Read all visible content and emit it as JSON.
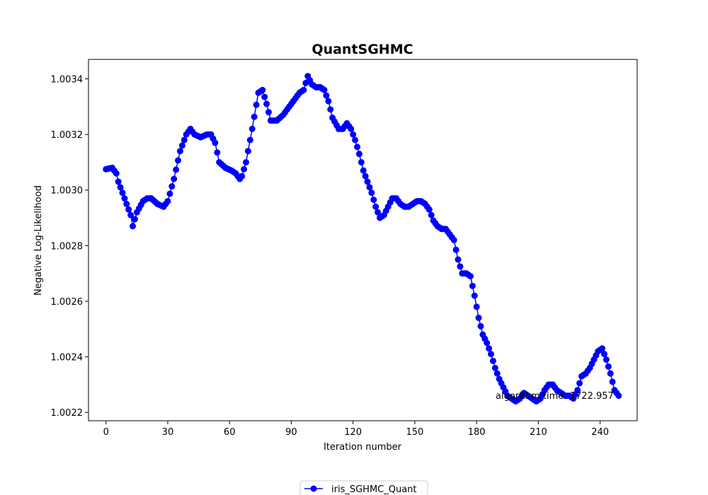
{
  "chart_data": {
    "type": "line",
    "title": "QuantSGHMC",
    "xlabel": "Iteration number",
    "ylabel": "Negative Log-Likelihood",
    "xlim": [
      -8.5,
      258
    ],
    "ylim": [
      1.00217,
      1.00347
    ],
    "xticks": [
      0,
      30,
      60,
      90,
      120,
      150,
      180,
      210,
      240
    ],
    "yticks": [
      1.0022,
      1.0024,
      1.0026,
      1.0028,
      1.003,
      1.0032,
      1.0034
    ],
    "ytick_labels": [
      "1.0022",
      "1.0024",
      "1.0026",
      "1.0028",
      "1.0030",
      "1.0032",
      "1.0034"
    ],
    "grid": false,
    "legend_position": "bottom-center",
    "color": "#0000ff",
    "annotation": "algorithm time: 1722.957",
    "series": [
      {
        "name": "iris_SGHMC_Quant",
        "marker": "circle",
        "keypoints_x": [
          0,
          3,
          5,
          6,
          10,
          12,
          13,
          15,
          18,
          20,
          22,
          25,
          28,
          30,
          33,
          36,
          39,
          41,
          43,
          46,
          49,
          51,
          53,
          55,
          58,
          61,
          63,
          65,
          66,
          68,
          71,
          74,
          76,
          78,
          80,
          83,
          86,
          88,
          91,
          94,
          96,
          98,
          100,
          102,
          104,
          106,
          108,
          110,
          113,
          115,
          117,
          119,
          121,
          123,
          125,
          127,
          129,
          131,
          133,
          135,
          137,
          139,
          141,
          143,
          145,
          147,
          149,
          151,
          153,
          155,
          157,
          159,
          161,
          163,
          165,
          167,
          169,
          171,
          173,
          175,
          177,
          179,
          181,
          183,
          185,
          187,
          189,
          191,
          193,
          195,
          197,
          199,
          201,
          203,
          205,
          207,
          209,
          211,
          213,
          215,
          217,
          219,
          221,
          223,
          225,
          227,
          229,
          231,
          233,
          235,
          237,
          239,
          241,
          243,
          245,
          247,
          249
        ],
        "keypoints_y": [
          1.003075,
          1.00308,
          1.00306,
          1.00303,
          1.00295,
          1.00291,
          1.00287,
          1.00292,
          1.00296,
          1.00297,
          1.00297,
          1.00295,
          1.00294,
          1.00296,
          1.00304,
          1.00314,
          1.0032,
          1.00322,
          1.0032,
          1.00319,
          1.0032,
          1.0032,
          1.00317,
          1.0031,
          1.00308,
          1.00307,
          1.00306,
          1.00304,
          1.00305,
          1.0031,
          1.00322,
          1.00335,
          1.00336,
          1.00331,
          1.00325,
          1.00325,
          1.00327,
          1.00329,
          1.00332,
          1.00335,
          1.00336,
          1.00341,
          1.00338,
          1.00337,
          1.00337,
          1.00336,
          1.00332,
          1.00326,
          1.00322,
          1.00322,
          1.00324,
          1.00322,
          1.00318,
          1.00313,
          1.00307,
          1.00303,
          1.00299,
          1.00294,
          1.0029,
          1.00291,
          1.00294,
          1.00297,
          1.00297,
          1.00295,
          1.00294,
          1.00294,
          1.00295,
          1.00296,
          1.00296,
          1.00295,
          1.00293,
          1.00289,
          1.00287,
          1.00286,
          1.00286,
          1.00284,
          1.00282,
          1.00275,
          1.0027,
          1.0027,
          1.00269,
          1.00262,
          1.00254,
          1.00248,
          1.00245,
          1.00241,
          1.00236,
          1.00232,
          1.00229,
          1.00226,
          1.00225,
          1.00224,
          1.00225,
          1.00227,
          1.00226,
          1.00225,
          1.00224,
          1.00225,
          1.00228,
          1.0023,
          1.0023,
          1.00228,
          1.00227,
          1.00226,
          1.00226,
          1.00225,
          1.00228,
          1.00233,
          1.00234,
          1.00236,
          1.00239,
          1.00242,
          1.00243,
          1.00239,
          1.00234,
          1.00228,
          1.00226
        ]
      }
    ]
  }
}
